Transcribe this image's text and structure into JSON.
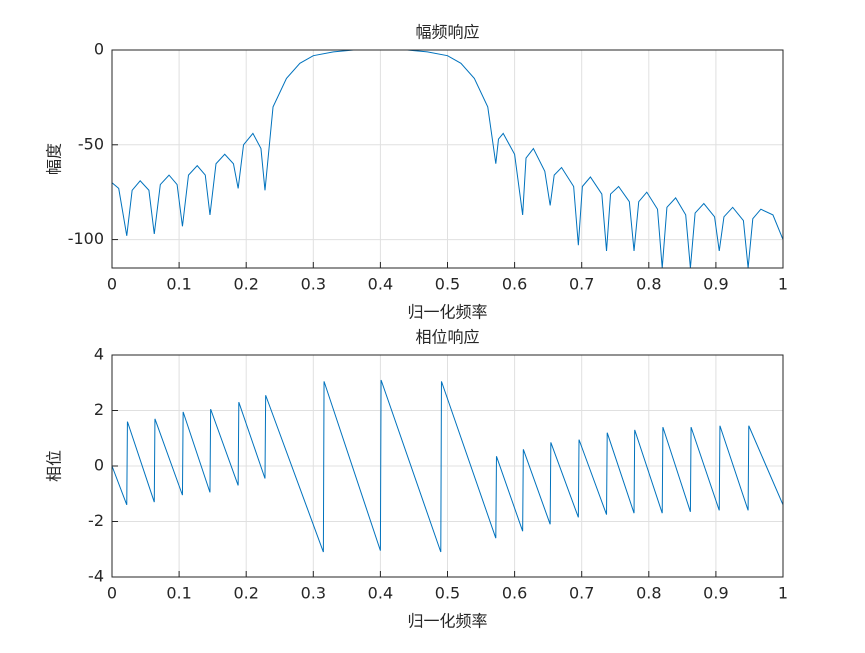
{
  "chart_data": [
    {
      "type": "line",
      "title": "幅频响应",
      "xlabel": "归一化频率",
      "ylabel": "幅度",
      "color": "#0072bd",
      "grid": true,
      "xlim": [
        0,
        1
      ],
      "ylim": [
        -115,
        0
      ],
      "xticks": [
        0,
        0.1,
        0.2,
        0.3,
        0.4,
        0.5,
        0.6,
        0.7,
        0.8,
        0.9,
        1
      ],
      "yticks": [
        -100,
        -50,
        0
      ],
      "x": [
        0,
        0.01,
        0.022,
        0.03,
        0.042,
        0.055,
        0.063,
        0.072,
        0.085,
        0.097,
        0.105,
        0.114,
        0.127,
        0.139,
        0.146,
        0.155,
        0.168,
        0.181,
        0.188,
        0.196,
        0.21,
        0.222,
        0.228,
        0.24,
        0.26,
        0.28,
        0.3,
        0.33,
        0.36,
        0.4,
        0.44,
        0.47,
        0.5,
        0.52,
        0.54,
        0.56,
        0.572,
        0.576,
        0.583,
        0.6,
        0.612,
        0.617,
        0.628,
        0.645,
        0.653,
        0.659,
        0.67,
        0.688,
        0.695,
        0.701,
        0.713,
        0.73,
        0.737,
        0.743,
        0.755,
        0.771,
        0.778,
        0.785,
        0.797,
        0.813,
        0.82,
        0.827,
        0.84,
        0.855,
        0.862,
        0.869,
        0.882,
        0.898,
        0.905,
        0.912,
        0.925,
        0.941,
        0.948,
        0.955,
        0.967,
        0.985,
        1
      ],
      "values": [
        -70,
        -73,
        -98,
        -74,
        -69,
        -74,
        -97,
        -71,
        -66,
        -71,
        -93,
        -66,
        -61,
        -66,
        -87,
        -60,
        -55,
        -60,
        -73,
        -50,
        -44,
        -52,
        -74,
        -30,
        -15,
        -7,
        -3,
        -1,
        0,
        0,
        0,
        -1,
        -3,
        -7,
        -15,
        -30,
        -60,
        -47,
        -44,
        -55,
        -87,
        -57,
        -52,
        -64,
        -82,
        -66,
        -62,
        -72,
        -103,
        -72,
        -67,
        -76,
        -106,
        -76,
        -72,
        -80,
        -106,
        -80,
        -75,
        -84,
        -115,
        -83,
        -78,
        -87,
        -115,
        -86,
        -81,
        -88,
        -106,
        -88,
        -83,
        -90,
        -115,
        -89,
        -84,
        -87,
        -100
      ]
    },
    {
      "type": "line",
      "title": "相位响应",
      "xlabel": "归一化频率",
      "ylabel": "相位",
      "color": "#0072bd",
      "grid": true,
      "xlim": [
        0,
        1
      ],
      "ylim": [
        -4,
        4
      ],
      "xticks": [
        0,
        0.1,
        0.2,
        0.3,
        0.4,
        0.5,
        0.6,
        0.7,
        0.8,
        0.9,
        1
      ],
      "yticks": [
        -4,
        -2,
        0,
        2,
        4
      ],
      "x": [
        0,
        0.022,
        0.023,
        0.063,
        0.064,
        0.105,
        0.106,
        0.146,
        0.147,
        0.188,
        0.189,
        0.228,
        0.229,
        0.315,
        0.316,
        0.4,
        0.401,
        0.49,
        0.491,
        0.572,
        0.573,
        0.612,
        0.613,
        0.653,
        0.654,
        0.695,
        0.696,
        0.737,
        0.738,
        0.778,
        0.779,
        0.82,
        0.821,
        0.862,
        0.863,
        0.905,
        0.906,
        0.948,
        0.949,
        1
      ],
      "values": [
        0,
        -1.4,
        1.6,
        -1.3,
        1.7,
        -1.05,
        1.95,
        -0.95,
        2.05,
        -0.7,
        2.3,
        -0.45,
        2.55,
        -3.1,
        3.05,
        -3.05,
        3.1,
        -3.1,
        3.05,
        -2.6,
        0.35,
        -2.35,
        0.6,
        -2.1,
        0.85,
        -1.85,
        0.95,
        -1.75,
        1.2,
        -1.7,
        1.3,
        -1.7,
        1.4,
        -1.65,
        1.4,
        -1.6,
        1.45,
        -1.6,
        1.45,
        -1.4
      ]
    }
  ]
}
